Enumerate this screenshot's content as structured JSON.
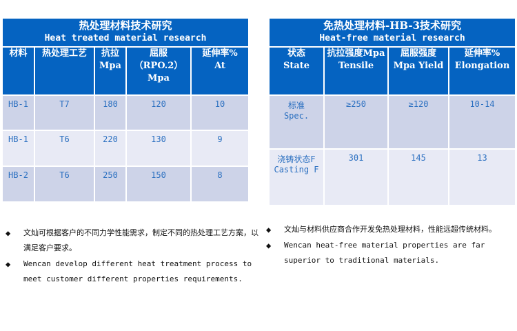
{
  "left": {
    "title_zh": "热处理材料技术研究",
    "title_en": "Heat treated material research",
    "headers": [
      [
        "材料",
        ""
      ],
      [
        "热处理工艺",
        ""
      ],
      [
        "抗拉",
        "Mpa"
      ],
      [
        "屈服",
        "（RPO.2）",
        "Mpa"
      ],
      [
        "延伸率%",
        "At"
      ]
    ],
    "rows": [
      [
        "HB-1",
        "T7",
        "180",
        "120",
        "10"
      ],
      [
        "HB-1",
        "T6",
        "220",
        "130",
        "9"
      ],
      [
        "HB-2",
        "T6",
        "250",
        "150",
        "8"
      ]
    ]
  },
  "right": {
    "title_zh": "免热处理材料-HB-3技术研究",
    "title_en": "Heat-free material research",
    "headers": [
      [
        "状态",
        "State"
      ],
      [
        "抗拉强度Mpa",
        "Tensile"
      ],
      [
        "屈服强度",
        "Mpa Yield"
      ],
      [
        "延伸率%",
        "Elongation"
      ]
    ],
    "rows": [
      [
        "标准",
        "Spec.",
        "≥250",
        "≥120",
        "10-14"
      ],
      [
        "浇铸状态F",
        "Casting F",
        "301",
        "145",
        "13"
      ]
    ]
  },
  "notes_left": {
    "zh": "文灿可根据客户的不同力学性能需求，制定不同的热处理工艺方案，以满足客户要求。",
    "en": "Wencan develop different heat treatment process to meet customer different properties requirements."
  },
  "notes_right": {
    "zh": "文灿与材料供应商合作开发免热处理材料，性能远超传统材料。",
    "en": "Wencan heat-free material properties are far superior to traditional materials."
  },
  "colors": {
    "header": "#0563c1",
    "row_dark": "#cdd3e8",
    "row_light": "#e8eaf5",
    "cell_text": "#2a6fc0"
  }
}
